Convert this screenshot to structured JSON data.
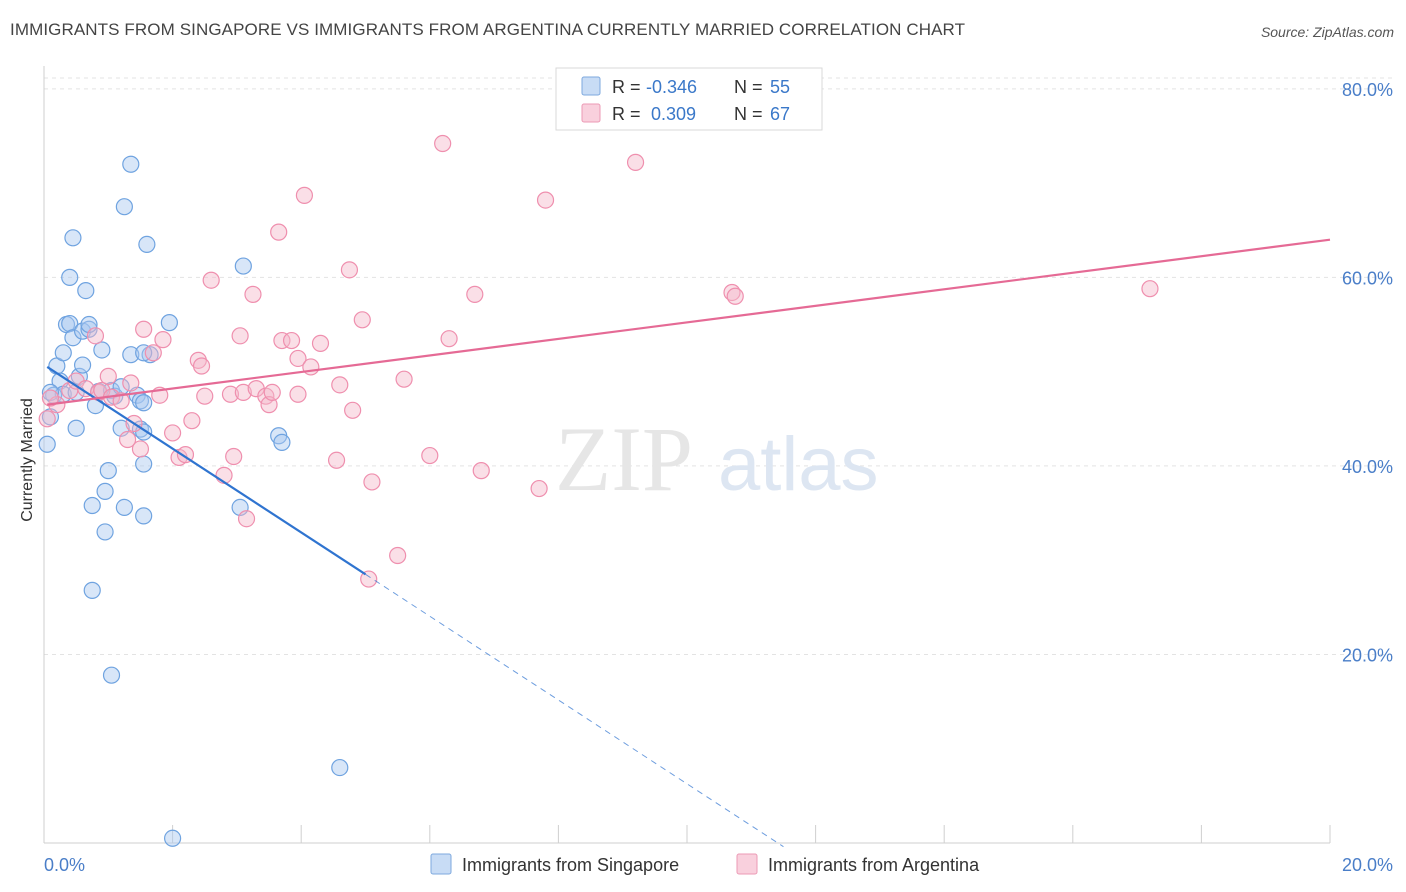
{
  "title": "IMMIGRANTS FROM SINGAPORE VS IMMIGRANTS FROM ARGENTINA CURRENTLY MARRIED CORRELATION CHART",
  "source": "Source: ZipAtlas.com",
  "watermark": {
    "zip": "ZIP",
    "atlas": "atlas"
  },
  "legend_box": {
    "rows": [
      {
        "r_label": "R = ",
        "r_value": "-0.346",
        "n_label": "N = ",
        "n_value": "55",
        "color": "#a9c8ef"
      },
      {
        "r_label": "R = ",
        "r_value": " 0.309",
        "n_label": "N = ",
        "n_value": "67",
        "color": "#f4b7c9"
      }
    ]
  },
  "bottom_legend": [
    {
      "label": "Immigrants from Singapore",
      "color": "#a9c8ef"
    },
    {
      "label": "Immigrants from Argentina",
      "color": "#f4b7c9"
    }
  ],
  "chart_data": {
    "type": "scatter",
    "title": "IMMIGRANTS FROM SINGAPORE VS IMMIGRANTS FROM ARGENTINA CURRENTLY MARRIED CORRELATION CHART",
    "xlabel": "",
    "ylabel": "Currently Married",
    "xlim": [
      0,
      20
    ],
    "ylim": [
      0,
      82
    ],
    "x_ticks": [
      "0.0%",
      "20.0%"
    ],
    "y_ticks": [
      {
        "value": 20,
        "label": "20.0%"
      },
      {
        "value": 40,
        "label": "40.0%"
      },
      {
        "value": 60,
        "label": "60.0%"
      },
      {
        "value": 80,
        "label": "80.0%"
      }
    ],
    "grid": true,
    "legend_position": "top-center",
    "series": [
      {
        "name": "Immigrants from Singapore",
        "color": "#6fa3e0",
        "fill": "#a9c8ef",
        "trend": {
          "x0": 0.05,
          "y0": 50.5,
          "x1": 5.0,
          "y1": 28.5,
          "dash_to_x": 11.5
        },
        "trend_color": "#2f74d0",
        "points": [
          [
            0.05,
            42.3
          ],
          [
            0.1,
            45.2
          ],
          [
            0.15,
            47.5
          ],
          [
            0.2,
            50.6
          ],
          [
            0.25,
            49.0
          ],
          [
            0.3,
            52.0
          ],
          [
            0.3,
            47.6
          ],
          [
            0.35,
            55.0
          ],
          [
            0.4,
            55.1
          ],
          [
            0.4,
            60.0
          ],
          [
            0.45,
            64.2
          ],
          [
            0.45,
            53.6
          ],
          [
            0.5,
            44.0
          ],
          [
            0.5,
            47.8
          ],
          [
            0.55,
            49.5
          ],
          [
            0.6,
            50.7
          ],
          [
            0.6,
            54.3
          ],
          [
            0.65,
            58.6
          ],
          [
            0.7,
            54.5
          ],
          [
            0.7,
            55.0
          ],
          [
            0.75,
            35.8
          ],
          [
            0.75,
            26.8
          ],
          [
            0.8,
            46.4
          ],
          [
            0.85,
            47.9
          ],
          [
            0.9,
            52.3
          ],
          [
            0.95,
            37.3
          ],
          [
            0.95,
            33.0
          ],
          [
            1.0,
            39.5
          ],
          [
            1.05,
            48.0
          ],
          [
            1.05,
            17.8
          ],
          [
            1.1,
            47.4
          ],
          [
            1.2,
            44.0
          ],
          [
            1.2,
            48.4
          ],
          [
            1.25,
            67.5
          ],
          [
            1.25,
            35.6
          ],
          [
            1.35,
            72.0
          ],
          [
            1.35,
            51.8
          ],
          [
            1.45,
            47.5
          ],
          [
            1.5,
            43.9
          ],
          [
            1.5,
            46.9
          ],
          [
            1.55,
            34.7
          ],
          [
            1.65,
            51.8
          ],
          [
            1.6,
            63.5
          ],
          [
            1.55,
            52.0
          ],
          [
            1.95,
            55.2
          ],
          [
            1.55,
            46.7
          ],
          [
            3.1,
            61.2
          ],
          [
            3.65,
            43.2
          ],
          [
            3.7,
            42.5
          ],
          [
            3.05,
            35.6
          ],
          [
            2.0,
            0.5
          ],
          [
            4.6,
            8.0
          ],
          [
            1.55,
            43.6
          ],
          [
            1.55,
            40.2
          ],
          [
            0.1,
            47.8
          ]
        ]
      },
      {
        "name": "Immigrants from Argentina",
        "color": "#ef8fae",
        "fill": "#f4b7c9",
        "trend": {
          "x0": 0.05,
          "y0": 46.5,
          "x1": 20.0,
          "y1": 64.0
        },
        "trend_color": "#e56a95",
        "points": [
          [
            0.05,
            45.0
          ],
          [
            0.2,
            46.5
          ],
          [
            0.4,
            48.0
          ],
          [
            0.5,
            49.0
          ],
          [
            0.65,
            48.2
          ],
          [
            0.8,
            53.8
          ],
          [
            0.85,
            47.8
          ],
          [
            0.9,
            48.0
          ],
          [
            1.0,
            49.5
          ],
          [
            1.05,
            47.3
          ],
          [
            1.2,
            46.9
          ],
          [
            1.3,
            42.8
          ],
          [
            1.4,
            44.5
          ],
          [
            1.5,
            41.8
          ],
          [
            1.35,
            48.8
          ],
          [
            1.55,
            54.5
          ],
          [
            1.7,
            52.0
          ],
          [
            1.8,
            47.5
          ],
          [
            1.85,
            53.4
          ],
          [
            2.0,
            43.5
          ],
          [
            2.1,
            40.9
          ],
          [
            2.2,
            41.2
          ],
          [
            2.3,
            44.8
          ],
          [
            2.4,
            51.2
          ],
          [
            2.45,
            50.6
          ],
          [
            2.5,
            47.4
          ],
          [
            2.6,
            59.7
          ],
          [
            2.8,
            39.0
          ],
          [
            2.9,
            47.6
          ],
          [
            2.95,
            41.0
          ],
          [
            3.05,
            53.8
          ],
          [
            3.1,
            47.8
          ],
          [
            3.15,
            34.4
          ],
          [
            3.25,
            58.2
          ],
          [
            3.3,
            48.2
          ],
          [
            3.45,
            47.4
          ],
          [
            3.5,
            46.5
          ],
          [
            3.55,
            47.8
          ],
          [
            3.65,
            64.8
          ],
          [
            3.7,
            53.3
          ],
          [
            3.85,
            53.3
          ],
          [
            3.95,
            47.6
          ],
          [
            3.95,
            51.4
          ],
          [
            4.05,
            68.7
          ],
          [
            4.15,
            50.5
          ],
          [
            4.3,
            53.0
          ],
          [
            4.55,
            40.6
          ],
          [
            4.6,
            48.6
          ],
          [
            4.75,
            60.8
          ],
          [
            4.8,
            45.9
          ],
          [
            4.95,
            55.5
          ],
          [
            5.05,
            28.0
          ],
          [
            5.1,
            38.3
          ],
          [
            5.5,
            30.5
          ],
          [
            5.6,
            49.2
          ],
          [
            6.0,
            41.1
          ],
          [
            6.2,
            74.2
          ],
          [
            6.3,
            53.5
          ],
          [
            6.7,
            58.2
          ],
          [
            6.8,
            39.5
          ],
          [
            7.7,
            37.6
          ],
          [
            7.8,
            68.2
          ],
          [
            9.2,
            72.2
          ],
          [
            10.7,
            58.4
          ],
          [
            10.75,
            58.0
          ],
          [
            17.2,
            58.8
          ],
          [
            0.1,
            47.2
          ]
        ]
      }
    ]
  }
}
